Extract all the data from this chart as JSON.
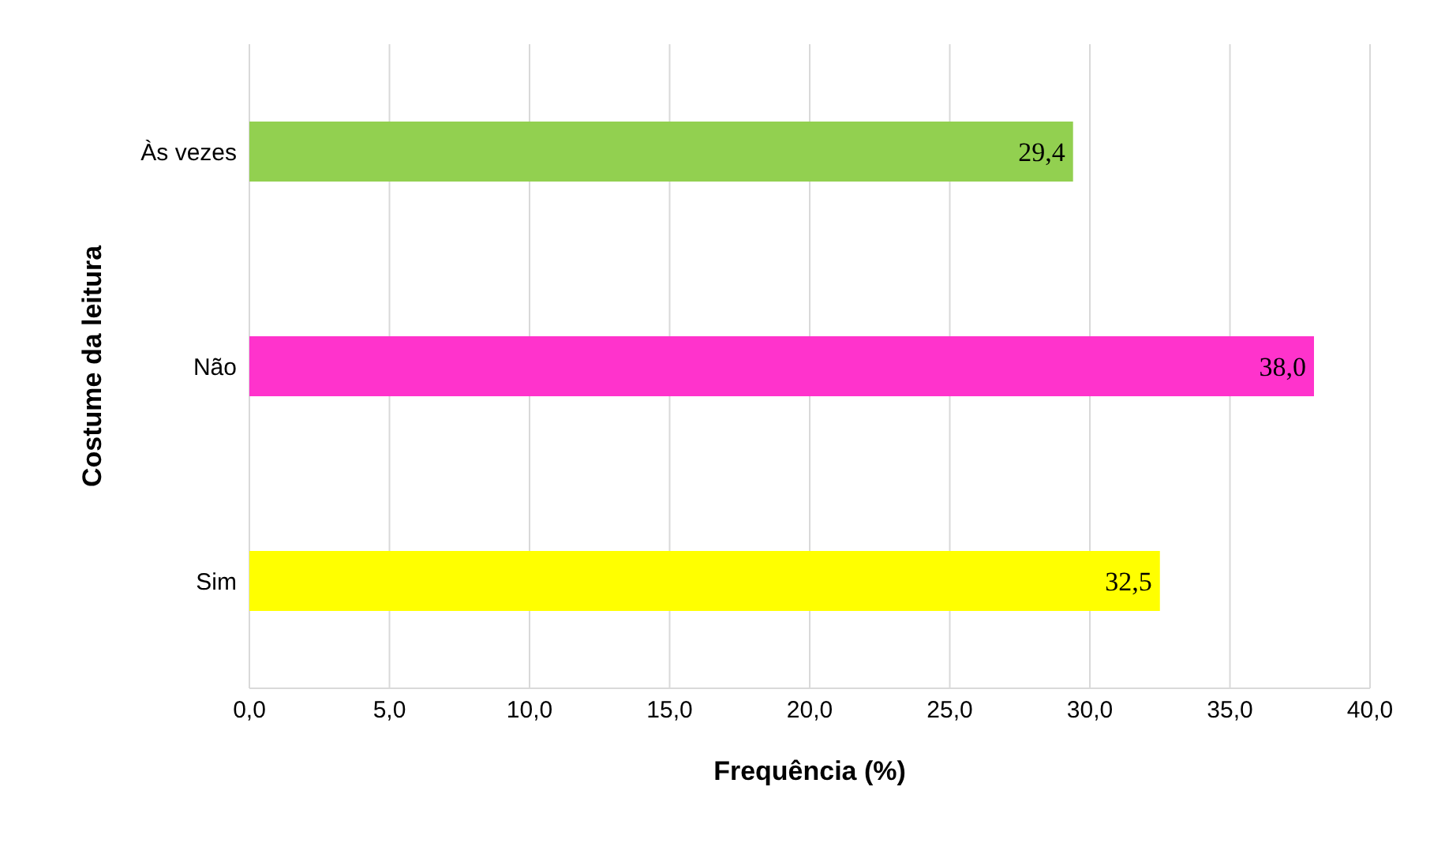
{
  "chart_data": {
    "type": "bar",
    "orientation": "horizontal",
    "categories": [
      "Às vezes",
      "Não",
      "Sim"
    ],
    "values": [
      29.4,
      38.0,
      32.5
    ],
    "colors": [
      "#92d050",
      "#ff33cc",
      "#ffff00"
    ],
    "value_labels": [
      "29,4",
      "38,0",
      "32,5"
    ],
    "xlim": [
      0,
      40
    ],
    "xticks": [
      {
        "value": 0,
        "label": "0,0"
      },
      {
        "value": 5,
        "label": "5,0"
      },
      {
        "value": 10,
        "label": "10,0"
      },
      {
        "value": 15,
        "label": "15,0"
      },
      {
        "value": 20,
        "label": "20,0"
      },
      {
        "value": 25,
        "label": "25,0"
      },
      {
        "value": 30,
        "label": "30,0"
      },
      {
        "value": 35,
        "label": "35,0"
      },
      {
        "value": 40,
        "label": "40,0"
      }
    ],
    "xlabel": "Frequência (%)",
    "ylabel": "Costume da leitura",
    "grid": "x"
  }
}
